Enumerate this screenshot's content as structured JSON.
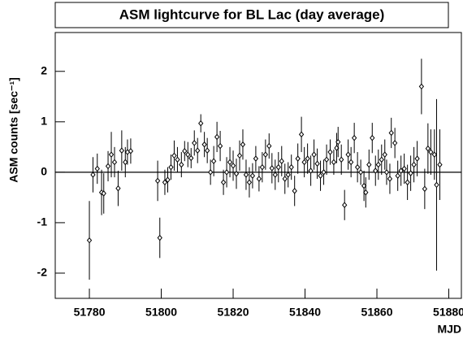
{
  "chart_data": {
    "type": "scatter",
    "title": "ASM lightcurve for BL Lac (day average)",
    "x_label": "MJD",
    "y_label": "ASM counts [sec⁻¹]",
    "xlim": [
      51770.5,
      51883.5
    ],
    "ylim": [
      -2.5,
      2.77
    ],
    "xticks": [
      51780,
      51800,
      51820,
      51840,
      51860,
      51880
    ],
    "yticks": [
      -2,
      -1,
      0,
      1,
      2
    ],
    "series": [
      {
        "name": "BL Lac",
        "color": "#000000",
        "x": [
          51780,
          51781,
          51782.2,
          51783.4,
          51784,
          51785.2,
          51786.1,
          51787,
          51788,
          51789,
          51790,
          51790.6,
          51791.5,
          51799,
          51799.6,
          51801,
          51801.8,
          51802.7,
          51803.6,
          51804.5,
          51805.6,
          51806.5,
          51807.4,
          51808.3,
          51809.2,
          51810.1,
          51811,
          51812,
          51812.8,
          51813.7,
          51814.6,
          51815.5,
          51816.4,
          51817.3,
          51818.2,
          51819.1,
          51820,
          51820.9,
          51821.8,
          51822.7,
          51823.6,
          51824.5,
          51825.4,
          51826.3,
          51827.2,
          51828.1,
          51829,
          51830,
          51830.8,
          51831.7,
          51832.6,
          51833.5,
          51834.4,
          51835.3,
          51836.2,
          51837.1,
          51838,
          51839,
          51839.8,
          51840.7,
          51841.6,
          51842.5,
          51843.4,
          51844.3,
          51845.2,
          51846,
          51847,
          51848,
          51848.8,
          51849.2,
          51850.1,
          51851,
          51852,
          51852.8,
          51853.7,
          51854.6,
          51855.5,
          51856.4,
          51856.9,
          51857.8,
          51858.7,
          51859.6,
          51860.4,
          51861.3,
          51862.2,
          51862.7,
          51863.6,
          51864,
          51865,
          51865.8,
          51866.7,
          51867.6,
          51868.5,
          51869.4,
          51870.3,
          51871.2,
          51872.4,
          51873.3,
          51874.2,
          51875,
          51876,
          51876.6,
          51877.5
        ],
        "values": [
          -1.35,
          -0.05,
          0.07,
          -0.4,
          -0.42,
          0.12,
          0.35,
          0.2,
          -0.32,
          0.43,
          0.2,
          0.4,
          0.42,
          -0.17,
          -1.3,
          -0.2,
          -0.15,
          0.1,
          0.33,
          0.25,
          0.15,
          0.42,
          0.35,
          0.28,
          0.58,
          0.43,
          0.97,
          0.55,
          0.43,
          0.0,
          0.22,
          0.7,
          0.52,
          -0.2,
          0.0,
          0.2,
          0.13,
          -0.03,
          0.33,
          0.55,
          -0.05,
          -0.2,
          -0.07,
          0.27,
          -0.13,
          0.1,
          0.35,
          0.52,
          0.08,
          -0.05,
          0.1,
          0.22,
          -0.13,
          -0.05,
          0.1,
          -0.37,
          0.27,
          0.75,
          0.2,
          0.27,
          0.03,
          0.35,
          0.17,
          -0.07,
          0.0,
          0.25,
          0.4,
          0.2,
          0.48,
          0.6,
          0.25,
          -0.65,
          0.35,
          0.2,
          0.68,
          0.1,
          0.0,
          -0.27,
          -0.4,
          0.15,
          0.68,
          0.03,
          0.15,
          0.25,
          0.35,
          0.0,
          -0.13,
          0.78,
          0.58,
          -0.07,
          0.03,
          0.07,
          -0.2,
          -0.02,
          0.15,
          0.27,
          1.7,
          -0.33,
          0.47,
          0.4,
          0.35,
          -0.25,
          0.15
        ],
        "errors": [
          0.78,
          0.35,
          0.3,
          0.45,
          0.4,
          0.3,
          0.45,
          0.3,
          0.35,
          0.4,
          0.3,
          0.25,
          0.25,
          0.4,
          0.4,
          0.25,
          0.25,
          0.25,
          0.3,
          0.25,
          0.25,
          0.2,
          0.25,
          0.2,
          0.25,
          0.25,
          0.18,
          0.25,
          0.25,
          0.25,
          0.3,
          0.3,
          0.3,
          0.25,
          0.3,
          0.3,
          0.3,
          0.3,
          0.3,
          0.3,
          0.3,
          0.3,
          0.25,
          0.25,
          0.25,
          0.3,
          0.3,
          0.25,
          0.3,
          0.3,
          0.3,
          0.3,
          0.3,
          0.25,
          0.25,
          0.3,
          0.3,
          0.35,
          0.3,
          0.3,
          0.3,
          0.3,
          0.3,
          0.3,
          0.25,
          0.3,
          0.25,
          0.25,
          0.3,
          0.3,
          0.3,
          0.3,
          0.3,
          0.3,
          0.3,
          0.3,
          0.25,
          0.3,
          0.3,
          0.3,
          0.3,
          0.3,
          0.3,
          0.3,
          0.3,
          0.25,
          0.3,
          0.3,
          0.3,
          0.3,
          0.3,
          0.3,
          0.35,
          0.35,
          0.35,
          0.35,
          0.55,
          0.4,
          0.5,
          0.45,
          0.5,
          1.7,
          0.7
        ]
      }
    ]
  }
}
